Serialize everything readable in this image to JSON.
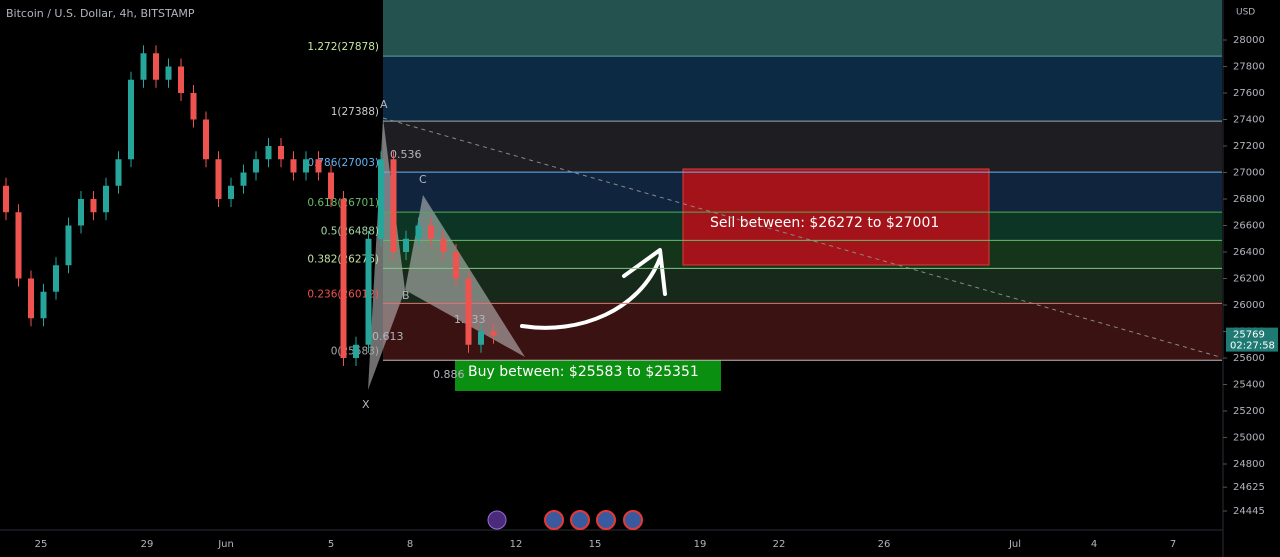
{
  "header": {
    "title": "Bitcoin / U.S. Dollar, 4h, BITSTAMP"
  },
  "price_axis": {
    "unit": "USD",
    "ticks": [
      28000,
      27800,
      27600,
      27400,
      27200,
      27000,
      26800,
      26600,
      26400,
      26200,
      26000,
      25800,
      25600,
      25400,
      25200,
      25000,
      24800,
      24625,
      24445
    ],
    "current_price": 25769,
    "countdown": "02:27:58"
  },
  "time_axis": {
    "labels": [
      "25",
      "29",
      "Jun",
      "5",
      "8",
      "12",
      "15",
      "19",
      "22",
      "26",
      "Jul",
      "4",
      "7"
    ]
  },
  "fib_levels": [
    {
      "label": "1.272(27878)",
      "price": 27878
    },
    {
      "label": "1(27388)",
      "price": 27388
    },
    {
      "label": "0.786(27003)",
      "price": 27003
    },
    {
      "label": "0.618(26701)",
      "price": 26701
    },
    {
      "label": "0.5(26488)",
      "price": 26488
    },
    {
      "label": "0.382(26276)",
      "price": 26276
    },
    {
      "label": "0.236(26012)",
      "price": 26012
    },
    {
      "label": "0(25583)",
      "price": 25583
    }
  ],
  "pattern": {
    "points": [
      "X",
      "A",
      "B",
      "C"
    ],
    "ratios": [
      "0.536",
      "0.613",
      "1.333",
      "0.886"
    ]
  },
  "zones": {
    "sell": "Sell between: $26272 to $27001",
    "buy": "Buy between: $25583 to $25351"
  },
  "price_history": [
    26900,
    26700,
    26200,
    25900,
    26100,
    26300,
    26600,
    26800,
    26700,
    26900,
    27100,
    27700,
    27900,
    27700,
    27800,
    27600,
    27400,
    27100,
    26800,
    26900,
    27000,
    27100,
    27200,
    27100,
    27000,
    27100,
    27000,
    26800,
    25600,
    25700,
    26500,
    27100,
    26400,
    26500,
    26600,
    26500,
    26400,
    26200,
    25700,
    25800,
    25769
  ]
}
